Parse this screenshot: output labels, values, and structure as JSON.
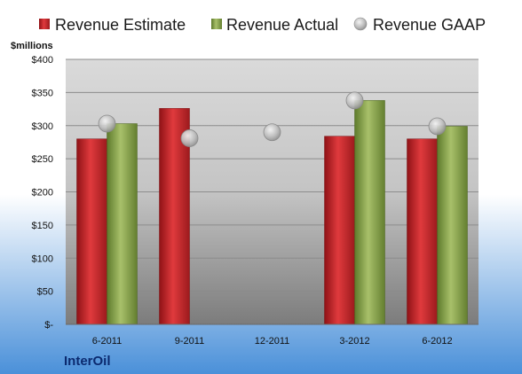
{
  "company": "InterOil",
  "unit_label": "$millions",
  "colors": {
    "estimate": "#c0282c",
    "actual": "#86a04a",
    "gaap": "#b3b3b3",
    "background_top": "#ffffff",
    "background_bottom": "#4a90d9",
    "plot_top": "#dcdcdc",
    "plot_bottom": "#7a7a7a",
    "company_text": "#0b2a6f"
  },
  "chart_data": {
    "type": "bar",
    "categories": [
      "6-2011",
      "9-2011",
      "12-2011",
      "3-2012",
      "6-2012"
    ],
    "series": [
      {
        "name": "Revenue Estimate",
        "kind": "bar",
        "values": [
          280,
          326,
          null,
          284,
          280
        ]
      },
      {
        "name": "Revenue Actual",
        "kind": "bar",
        "values": [
          303,
          null,
          null,
          338,
          299
        ]
      },
      {
        "name": "Revenue GAAP",
        "kind": "scatter",
        "values": [
          303,
          281,
          290,
          338,
          299
        ]
      }
    ],
    "ylim": [
      0,
      400
    ],
    "y_ticks": [
      0,
      50,
      100,
      150,
      200,
      250,
      300,
      350,
      400
    ],
    "y_tick_labels": [
      "$-",
      "$50",
      "$100",
      "$150",
      "$200",
      "$250",
      "$300",
      "$350",
      "$400"
    ],
    "ylabel": "$millions",
    "grid": true,
    "legend_position": "top"
  }
}
